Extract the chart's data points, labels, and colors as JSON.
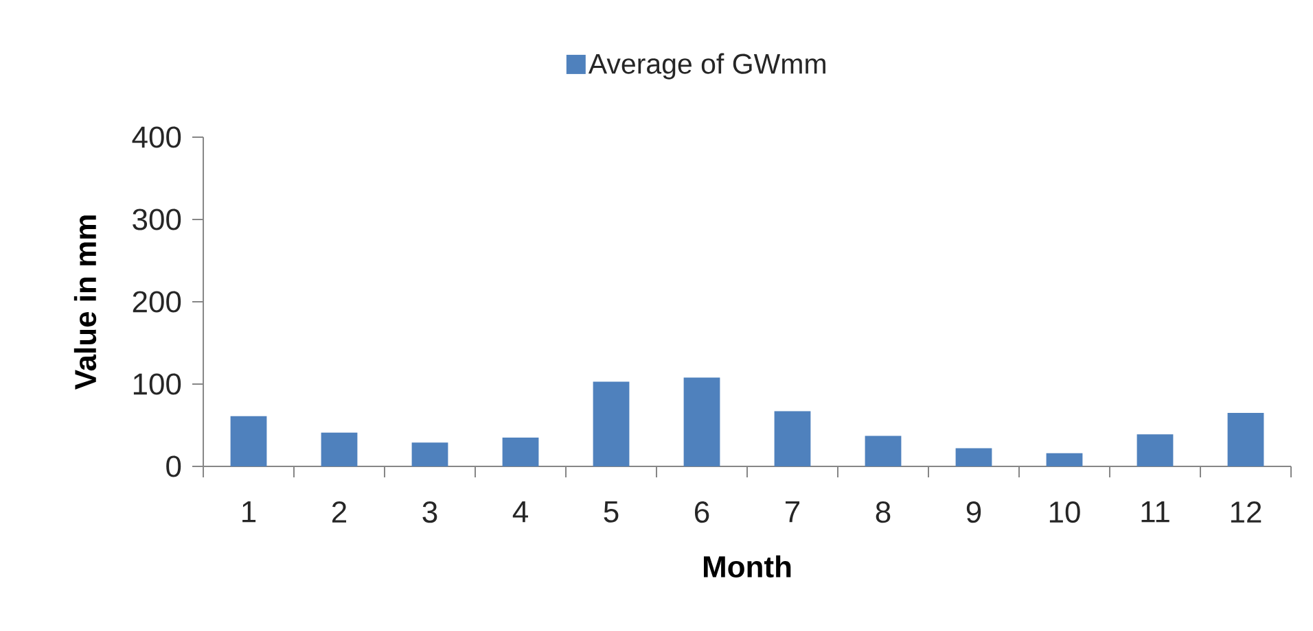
{
  "chart_data": {
    "type": "bar",
    "xlabel": "Month",
    "ylabel": "Value in mm",
    "categories": [
      "1",
      "2",
      "3",
      "4",
      "5",
      "6",
      "7",
      "8",
      "9",
      "10",
      "11",
      "12"
    ],
    "series": [
      {
        "name": "Average of GWmm",
        "color": "#4f81bd",
        "values": [
          61,
          41,
          29,
          35,
          103,
          108,
          67,
          37,
          22,
          16,
          39,
          65
        ]
      }
    ],
    "ylim": [
      0,
      400
    ],
    "yticks": [
      0,
      100,
      200,
      300,
      400
    ],
    "legend": "top"
  }
}
